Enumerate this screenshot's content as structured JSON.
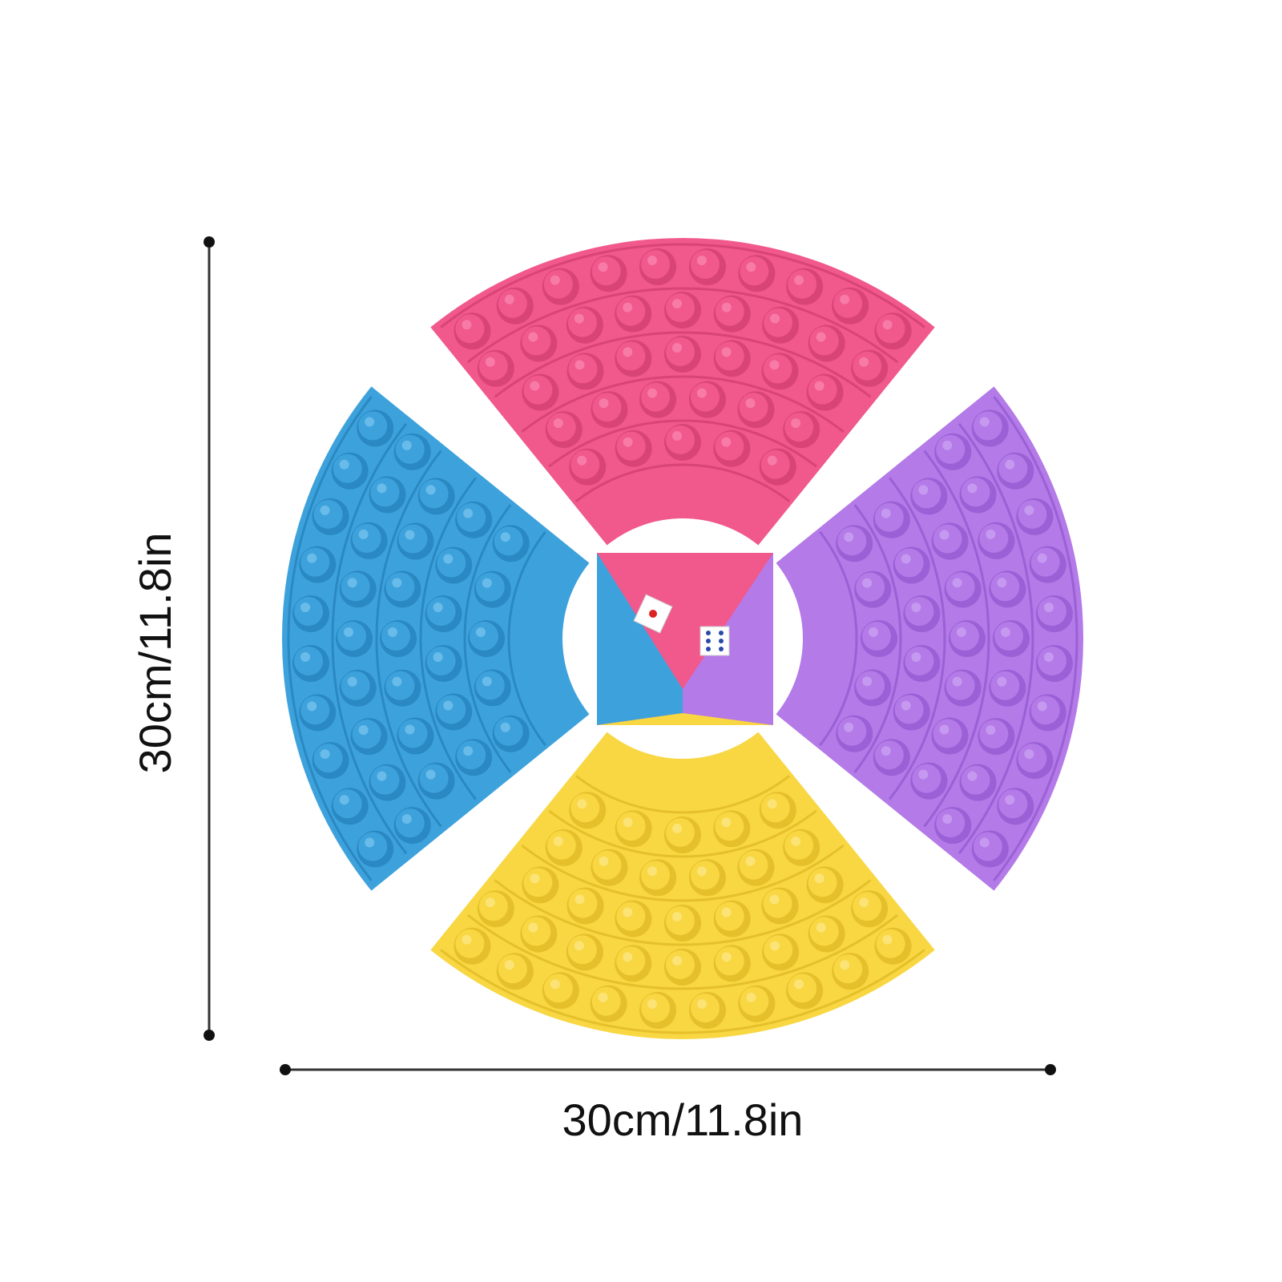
{
  "dimensions": {
    "height_label": "30cm/11.8in",
    "width_label": "30cm/11.8in"
  }
}
